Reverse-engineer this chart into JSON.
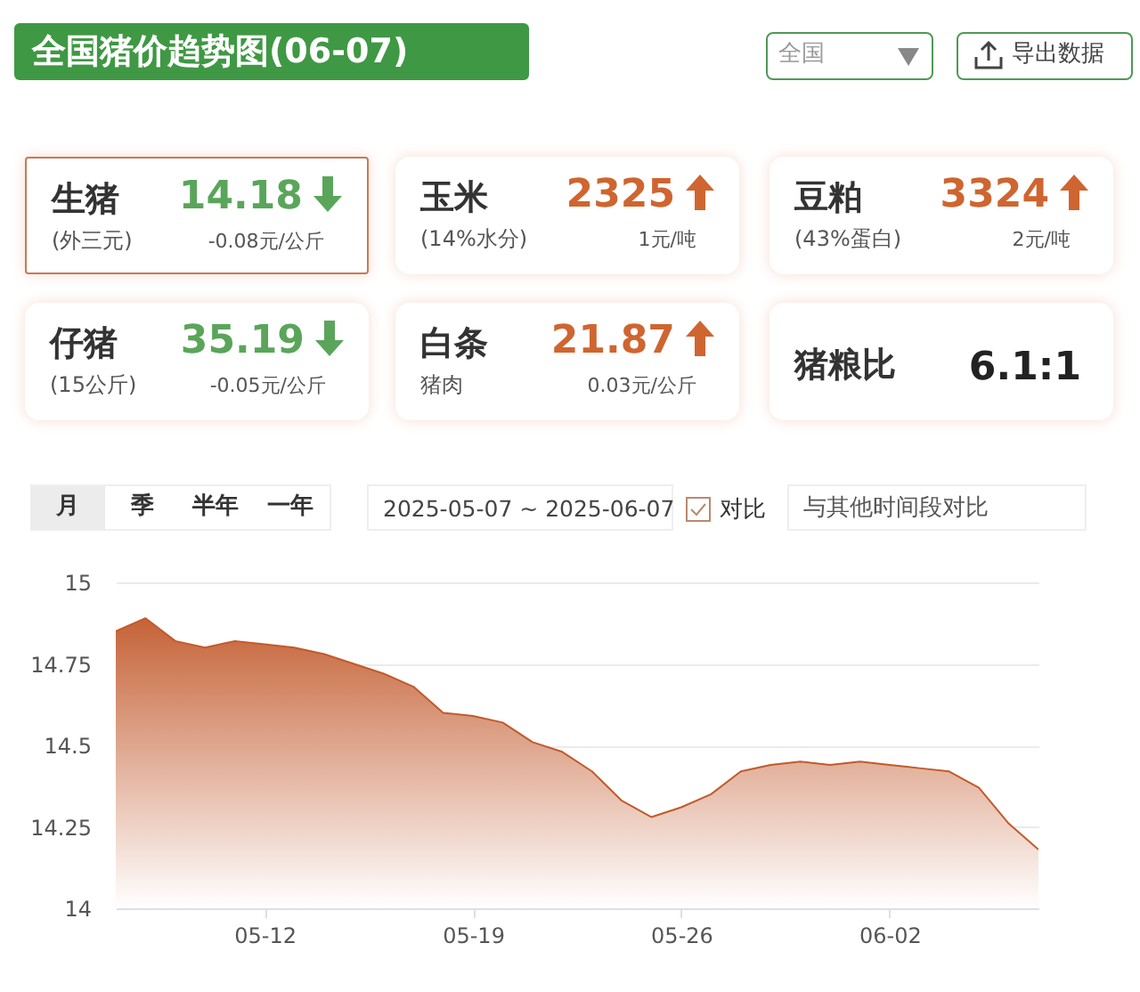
{
  "chart_data": [
    {
      "type": "other",
      "title": "全国猪价趋势图(06-07)",
      "categories": [
        "生猪",
        "玉米",
        "豆粕",
        "仔猪",
        "白条",
        "猪粮比"
      ],
      "value_labels": [
        "14.18",
        "2325",
        "3324",
        "35.19",
        "21.87",
        "6.1:1"
      ],
      "annotations": [
        {
          "text": "(外三元)",
          "x": "生猪"
        },
        {
          "text": "-0.08元/公斤",
          "x": "生猪"
        },
        {
          "text": "(14%水分)",
          "x": "玉米"
        },
        {
          "text": "1元/吨",
          "x": "玉米"
        },
        {
          "text": "(43%蛋白)",
          "x": "豆粕"
        },
        {
          "text": "2元/吨",
          "x": "豆粕"
        },
        {
          "text": "(15公斤)",
          "x": "仔猪"
        },
        {
          "text": "-0.05元/公斤",
          "x": "仔猪"
        },
        {
          "text": "猪肉",
          "x": "白条"
        },
        {
          "text": "0.03元/公斤",
          "x": "白条"
        },
        "全国",
        "导出数据"
      ]
    },
    {
      "type": "area",
      "x": [
        "2025-05-07",
        "2025-05-08",
        "2025-05-09",
        "2025-05-10",
        "2025-05-11",
        "2025-05-12",
        "2025-05-13",
        "2025-05-14",
        "2025-05-15",
        "2025-05-16",
        "2025-05-17",
        "2025-05-18",
        "2025-05-19",
        "2025-05-20",
        "2025-05-21",
        "2025-05-22",
        "2025-05-23",
        "2025-05-24",
        "2025-05-25",
        "2025-05-26",
        "2025-05-27",
        "2025-05-28",
        "2025-05-29",
        "2025-05-30",
        "2025-05-31",
        "2025-06-01",
        "2025-06-02",
        "2025-06-03",
        "2025-06-04",
        "2025-06-05",
        "2025-06-06",
        "2025-06-07"
      ],
      "series": [
        {
          "color": "#c25a2c",
          "values": [
            14.85,
            14.89,
            14.82,
            14.8,
            14.82,
            14.81,
            14.8,
            14.78,
            14.75,
            14.72,
            14.68,
            14.6,
            14.59,
            14.57,
            14.51,
            14.48,
            14.42,
            14.33,
            14.28,
            14.31,
            14.35,
            14.42,
            14.44,
            14.45,
            14.44,
            14.45,
            14.44,
            14.43,
            14.42,
            14.37,
            14.26,
            14.18
          ]
        }
      ],
      "xlim": [
        "2025-05-07",
        "2025-06-07"
      ],
      "xticks": [
        {
          "value": "2025-05-12",
          "label": "05-12"
        },
        {
          "value": "2025-05-19",
          "label": "05-19"
        },
        {
          "value": "2025-05-26",
          "label": "05-26"
        },
        {
          "value": "2025-06-02",
          "label": "06-02"
        }
      ],
      "ylim": [
        14,
        15.0
      ],
      "yticks": [
        14,
        14.25,
        14.5,
        14.75,
        15
      ],
      "grid": "y",
      "annotations": [
        "月",
        "季",
        "半年",
        "一年",
        "2025-05-07 ~ 2025-06-07",
        "对比",
        "与其他时间段对比"
      ]
    }
  ]
}
